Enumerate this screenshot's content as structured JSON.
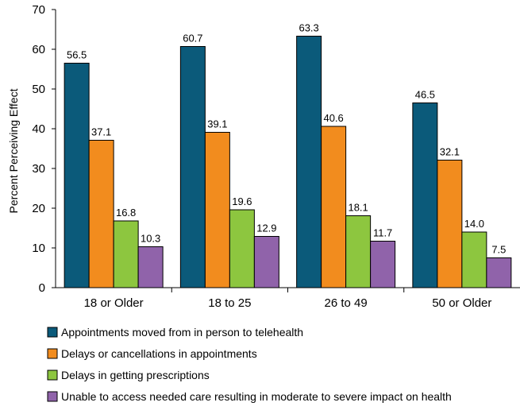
{
  "chart_data": {
    "type": "bar",
    "title": "",
    "xlabel": "",
    "ylabel": "Percent Perceiving Effect",
    "ylim": [
      0,
      70
    ],
    "yticks": [
      0,
      10,
      20,
      30,
      40,
      50,
      60,
      70
    ],
    "grid": false,
    "legend_position": "bottom",
    "categories": [
      "18 or Older",
      "18 to 25",
      "26 to 49",
      "50 or Older"
    ],
    "series": [
      {
        "name": "Appointments moved from in person to telehealth",
        "color": "#0b5a7a",
        "values": [
          56.5,
          60.7,
          63.3,
          46.5
        ],
        "labels": [
          "56.5",
          "60.7",
          "63.3",
          "46.5"
        ]
      },
      {
        "name": "Delays or cancellations in appointments",
        "color": "#f28c1e",
        "values": [
          37.1,
          39.1,
          40.6,
          32.1
        ],
        "labels": [
          "37.1",
          "39.1",
          "40.6",
          "32.1"
        ]
      },
      {
        "name": "Delays in getting prescriptions",
        "color": "#8dc63f",
        "values": [
          16.8,
          19.6,
          18.1,
          14.0
        ],
        "labels": [
          "16.8",
          "19.6",
          "18.1",
          "14.0"
        ]
      },
      {
        "name": "Unable to access needed care resulting in moderate to severe impact on health",
        "color": "#9063aa",
        "values": [
          10.3,
          12.9,
          11.7,
          7.5
        ],
        "labels": [
          "10.3",
          "12.9",
          "11.7",
          "7.5"
        ]
      }
    ]
  }
}
